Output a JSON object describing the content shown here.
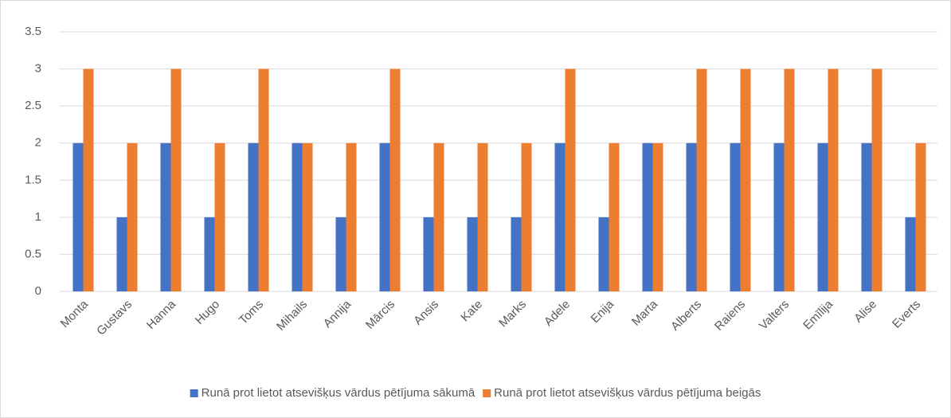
{
  "chart_data": {
    "type": "bar",
    "categories": [
      "Monta",
      "Gustavs",
      "Hanna",
      "Hugo",
      "Toms",
      "Mihails",
      "Annija",
      "Mārcis",
      "Ansis",
      "Kate",
      "Marks",
      "Adele",
      "Enija",
      "Marta",
      "Alberts",
      "Raiens",
      "Valters",
      "Emīlija",
      "Alise",
      "Everts"
    ],
    "series": [
      {
        "name": "Runā prot lietot atsevišķus vārdus pētījuma sākumā",
        "color": "#4472c4",
        "values": [
          2,
          1,
          2,
          1,
          2,
          2,
          1,
          2,
          1,
          1,
          1,
          2,
          1,
          2,
          2,
          2,
          2,
          2,
          2,
          1
        ]
      },
      {
        "name": "Runā prot lietot atsevišķus vārdus pētījuma beigās",
        "color": "#ed7d31",
        "values": [
          3,
          2,
          3,
          2,
          3,
          2,
          2,
          3,
          2,
          2,
          2,
          3,
          2,
          2,
          3,
          3,
          3,
          3,
          3,
          2
        ]
      }
    ],
    "ylim": [
      0,
      3.5
    ],
    "yticks": [
      0,
      0.5,
      1,
      1.5,
      2,
      2.5,
      3,
      3.5
    ],
    "grid": true,
    "legend": "bottom"
  }
}
